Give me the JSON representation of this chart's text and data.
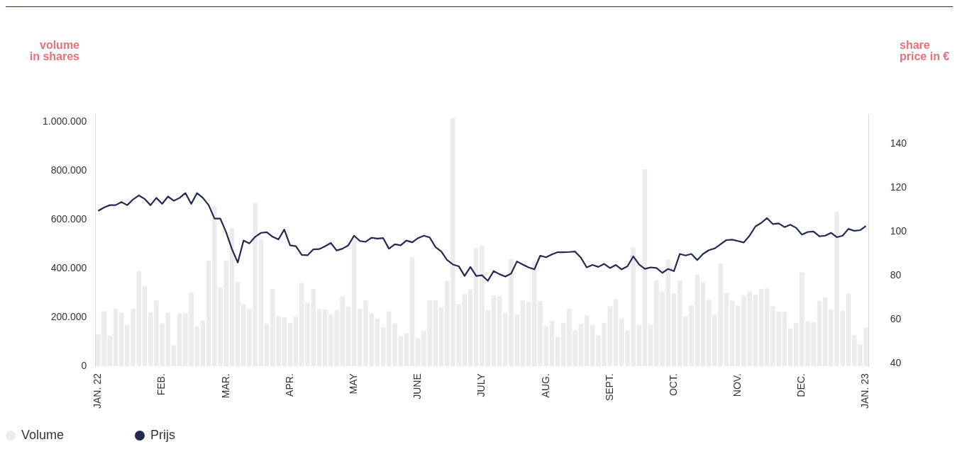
{
  "chart_data": {
    "type": "bar",
    "ylabel": "volume in shares",
    "y2label": "share price in €",
    "categories": [
      "JAN. 22",
      null,
      null,
      null,
      null,
      null,
      null,
      null,
      null,
      null,
      null,
      "FEB.",
      null,
      null,
      null,
      null,
      null,
      null,
      null,
      null,
      null,
      null,
      "MAR.",
      null,
      null,
      null,
      null,
      null,
      null,
      null,
      null,
      null,
      null,
      "APR.",
      null,
      null,
      null,
      null,
      null,
      null,
      null,
      null,
      null,
      null,
      "MAY",
      null,
      null,
      null,
      null,
      null,
      null,
      null,
      null,
      null,
      null,
      "JUNE",
      null,
      null,
      null,
      null,
      null,
      null,
      null,
      null,
      null,
      null,
      "JULY",
      null,
      null,
      null,
      null,
      null,
      null,
      null,
      null,
      null,
      null,
      "AUG.",
      null,
      null,
      null,
      null,
      null,
      null,
      null,
      null,
      null,
      null,
      "SEPT.",
      null,
      null,
      null,
      null,
      null,
      null,
      null,
      null,
      null,
      null,
      "OCT.",
      null,
      null,
      null,
      null,
      null,
      null,
      null,
      null,
      null,
      null,
      "NOV.",
      null,
      null,
      null,
      null,
      null,
      null,
      null,
      null,
      null,
      null,
      "DEC.",
      null,
      null,
      null,
      null,
      null,
      null,
      null,
      null,
      null,
      null,
      "JAN. 23"
    ],
    "series": [
      {
        "name": "Volume",
        "color": "#ececec",
        "values": [
          130000,
          225000,
          125000,
          235000,
          220000,
          170000,
          235000,
          389000,
          329000,
          220000,
          269000,
          175000,
          220000,
          87000,
          217000,
          217000,
          302000,
          163000,
          187000,
          431000,
          654000,
          322000,
          431000,
          564000,
          344000,
          254000,
          235000,
          668000,
          519000,
          173000,
          316000,
          205000,
          200000,
          178000,
          203000,
          341000,
          261000,
          316000,
          235000,
          233000,
          211000,
          230000,
          287000,
          243000,
          534000,
          235000,
          269000,
          217000,
          195000,
          160000,
          225000,
          175000,
          123000,
          135000,
          446000,
          115000,
          145000,
          269000,
          269000,
          240000,
          349000,
          1015000,
          254000,
          296000,
          314000,
          482000,
          491000,
          230000,
          289000,
          287000,
          217000,
          439000,
          213000,
          269000,
          263000,
          427000,
          266000,
          163000,
          185000,
          120000,
          177000,
          235000,
          147000,
          173000,
          208000,
          170000,
          127000,
          178000,
          245000,
          275000,
          195000,
          147000,
          486000,
          170000,
          805000,
          170000,
          352000,
          306000,
          436000,
          299000,
          351000,
          203000,
          249000,
          374000,
          344000,
          272000,
          210000,
          421000,
          301000,
          267000,
          248000,
          289000,
          307000,
          292000,
          316000,
          318000,
          245000,
          223000,
          223000,
          155000,
          177000,
          384000,
          185000,
          180000,
          266000,
          282000,
          233000,
          632000,
          227000,
          297000,
          128000,
          90000,
          158000
        ]
      },
      {
        "name": "Prijs",
        "type": "line",
        "axis": "y2",
        "color": "#232a4f",
        "values": [
          109.4,
          110.9,
          112,
          112,
          113.4,
          112,
          114.6,
          116.4,
          114.8,
          112,
          115.3,
          112.6,
          115.9,
          114,
          115.3,
          117.5,
          112.6,
          117.5,
          115.3,
          112,
          105.9,
          105.9,
          99.7,
          92,
          85.9,
          95.9,
          94.6,
          97.6,
          99.4,
          99.7,
          97.6,
          96.4,
          100.9,
          93.7,
          93.3,
          89.4,
          89.2,
          91.9,
          92,
          93.3,
          94.8,
          91.4,
          92.2,
          93.7,
          98.1,
          95.7,
          95.3,
          97.2,
          96.8,
          97,
          92.2,
          94.2,
          93.7,
          95.9,
          95.1,
          97,
          98.1,
          97.3,
          92.9,
          90.9,
          87,
          85,
          84.2,
          79.8,
          83.9,
          79.8,
          80.1,
          77.6,
          82,
          80.6,
          79.5,
          80.9,
          86.4,
          85,
          83.7,
          82.8,
          89,
          88.3,
          89.6,
          90.6,
          90.6,
          90.7,
          90.9,
          88.1,
          83.7,
          84.8,
          83.9,
          85.3,
          83.4,
          84.8,
          82.8,
          84.2,
          88.7,
          85,
          83,
          83.7,
          83.4,
          81.2,
          83,
          82,
          89.8,
          89.1,
          89.8,
          87,
          89.8,
          91.5,
          92.3,
          94.2,
          96.1,
          96.3,
          95.7,
          95,
          98.1,
          102.3,
          103.9,
          106.1,
          103.4,
          103.7,
          102,
          103.1,
          101.7,
          98.6,
          99.8,
          100,
          97.8,
          98.1,
          99.4,
          97.4,
          98.1,
          101.2,
          100.3,
          100.6,
          102.5
        ]
      }
    ],
    "ylim": [
      0,
      1030000
    ],
    "yticks": [
      {
        "value": 0,
        "label": "0"
      },
      {
        "value": 200000,
        "label": "200.000"
      },
      {
        "value": 400000,
        "label": "400.000"
      },
      {
        "value": 600000,
        "label": "600.000"
      },
      {
        "value": 800000,
        "label": "800.000"
      },
      {
        "value": 1000000,
        "label": "1.000.000"
      }
    ],
    "y2lim": [
      38.7,
      153.3
    ],
    "y2ticks": [
      40,
      60,
      80,
      100,
      120,
      140
    ],
    "legend": "bottom left",
    "marker": "none"
  }
}
